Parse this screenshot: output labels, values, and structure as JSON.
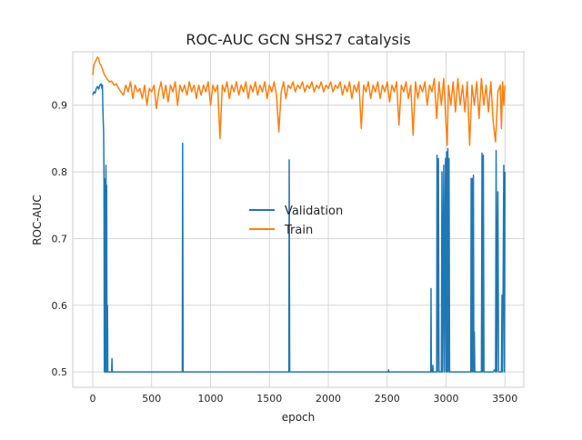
{
  "chart_data": {
    "type": "line",
    "title": "ROC-AUC GCN SHS27 catalysis",
    "xlabel": "epoch",
    "ylabel": "ROC-AUC",
    "xlim": [
      -170,
      3660
    ],
    "ylim": [
      0.477,
      0.98
    ],
    "xticks": [
      0,
      500,
      1000,
      1500,
      2000,
      2500,
      3000,
      3500
    ],
    "yticks": [
      0.5,
      0.6,
      0.7,
      0.8,
      0.9
    ],
    "ytick_labels": [
      "0.5",
      "0.6",
      "0.7",
      "0.8",
      "0.9"
    ],
    "grid": true,
    "legend": "center",
    "series": [
      {
        "name": "Validation",
        "color": "#1f77b4",
        "points": [
          [
            0,
            0.915
          ],
          [
            10,
            0.92
          ],
          [
            20,
            0.918
          ],
          [
            30,
            0.925
          ],
          [
            40,
            0.928
          ],
          [
            50,
            0.924
          ],
          [
            60,
            0.93
          ],
          [
            70,
            0.932
          ],
          [
            78,
            0.925
          ],
          [
            82,
            0.93
          ],
          [
            85,
            0.9
          ],
          [
            88,
            0.88
          ],
          [
            92,
            0.86
          ],
          [
            95,
            0.8
          ],
          [
            98,
            0.5
          ],
          [
            100,
            0.79
          ],
          [
            103,
            0.5
          ],
          [
            106,
            0.78
          ],
          [
            109,
            0.5
          ],
          [
            112,
            0.81
          ],
          [
            115,
            0.5
          ],
          [
            118,
            0.78
          ],
          [
            121,
            0.5
          ],
          [
            125,
            0.6
          ],
          [
            128,
            0.5
          ],
          [
            160,
            0.5
          ],
          [
            163,
            0.52
          ],
          [
            166,
            0.5
          ],
          [
            760,
            0.5
          ],
          [
            763,
            0.843
          ],
          [
            767,
            0.5
          ],
          [
            1665,
            0.5
          ],
          [
            1668,
            0.818
          ],
          [
            1672,
            0.5
          ],
          [
            2510,
            0.5
          ],
          [
            2512,
            0.503
          ],
          [
            2515,
            0.5
          ],
          [
            2870,
            0.5
          ],
          [
            2872,
            0.625
          ],
          [
            2875,
            0.5
          ],
          [
            2885,
            0.5
          ],
          [
            2888,
            0.51
          ],
          [
            2891,
            0.5
          ],
          [
            2920,
            0.5
          ],
          [
            2923,
            0.825
          ],
          [
            2927,
            0.5
          ],
          [
            2935,
            0.82
          ],
          [
            2940,
            0.5
          ],
          [
            2960,
            0.5
          ],
          [
            2965,
            0.8
          ],
          [
            2970,
            0.5
          ],
          [
            2980,
            0.81
          ],
          [
            2985,
            0.5
          ],
          [
            2995,
            0.82
          ],
          [
            3000,
            0.5
          ],
          [
            3005,
            0.83
          ],
          [
            3010,
            0.5
          ],
          [
            3015,
            0.835
          ],
          [
            3020,
            0.5
          ],
          [
            3025,
            0.82
          ],
          [
            3030,
            0.5
          ],
          [
            3210,
            0.5
          ],
          [
            3213,
            0.79
          ],
          [
            3216,
            0.5
          ],
          [
            3222,
            0.79
          ],
          [
            3225,
            0.5
          ],
          [
            3232,
            0.795
          ],
          [
            3236,
            0.5
          ],
          [
            3240,
            0.56
          ],
          [
            3244,
            0.5
          ],
          [
            3300,
            0.5
          ],
          [
            3305,
            0.828
          ],
          [
            3310,
            0.5
          ],
          [
            3316,
            0.825
          ],
          [
            3322,
            0.5
          ],
          [
            3400,
            0.5
          ],
          [
            3410,
            0.503
          ],
          [
            3420,
            0.5
          ],
          [
            3425,
            0.832
          ],
          [
            3430,
            0.5
          ],
          [
            3440,
            0.77
          ],
          [
            3446,
            0.5
          ],
          [
            3470,
            0.5
          ],
          [
            3475,
            0.615
          ],
          [
            3480,
            0.5
          ],
          [
            3490,
            0.81
          ],
          [
            3496,
            0.5
          ],
          [
            3500,
            0.8
          ]
        ]
      },
      {
        "name": "Train",
        "color": "#ff7f0e",
        "points": [
          [
            0,
            0.945
          ],
          [
            10,
            0.96
          ],
          [
            20,
            0.965
          ],
          [
            30,
            0.968
          ],
          [
            40,
            0.972
          ],
          [
            50,
            0.97
          ],
          [
            60,
            0.962
          ],
          [
            70,
            0.96
          ],
          [
            80,
            0.955
          ],
          [
            90,
            0.95
          ],
          [
            100,
            0.945
          ],
          [
            120,
            0.94
          ],
          [
            140,
            0.935
          ],
          [
            160,
            0.936
          ],
          [
            180,
            0.93
          ],
          [
            200,
            0.932
          ],
          [
            220,
            0.925
          ],
          [
            240,
            0.92
          ],
          [
            260,
            0.915
          ],
          [
            280,
            0.93
          ],
          [
            300,
            0.92
          ],
          [
            320,
            0.935
          ],
          [
            340,
            0.91
          ],
          [
            360,
            0.93
          ],
          [
            380,
            0.92
          ],
          [
            400,
            0.925
          ],
          [
            420,
            0.91
          ],
          [
            440,
            0.93
          ],
          [
            460,
            0.9
          ],
          [
            480,
            0.925
          ],
          [
            500,
            0.92
          ],
          [
            520,
            0.93
          ],
          [
            540,
            0.895
          ],
          [
            560,
            0.92
          ],
          [
            580,
            0.935
          ],
          [
            600,
            0.91
          ],
          [
            620,
            0.93
          ],
          [
            640,
            0.905
          ],
          [
            660,
            0.93
          ],
          [
            680,
            0.92
          ],
          [
            700,
            0.935
          ],
          [
            720,
            0.9
          ],
          [
            740,
            0.93
          ],
          [
            760,
            0.92
          ],
          [
            780,
            0.93
          ],
          [
            800,
            0.915
          ],
          [
            820,
            0.935
          ],
          [
            840,
            0.92
          ],
          [
            860,
            0.93
          ],
          [
            880,
            0.91
          ],
          [
            900,
            0.93
          ],
          [
            920,
            0.915
          ],
          [
            940,
            0.93
          ],
          [
            960,
            0.92
          ],
          [
            980,
            0.935
          ],
          [
            1000,
            0.9
          ],
          [
            1020,
            0.93
          ],
          [
            1040,
            0.92
          ],
          [
            1060,
            0.93
          ],
          [
            1080,
            0.85
          ],
          [
            1100,
            0.93
          ],
          [
            1120,
            0.92
          ],
          [
            1140,
            0.935
          ],
          [
            1160,
            0.91
          ],
          [
            1180,
            0.93
          ],
          [
            1200,
            0.92
          ],
          [
            1220,
            0.935
          ],
          [
            1240,
            0.915
          ],
          [
            1260,
            0.93
          ],
          [
            1280,
            0.92
          ],
          [
            1300,
            0.935
          ],
          [
            1320,
            0.91
          ],
          [
            1340,
            0.93
          ],
          [
            1360,
            0.92
          ],
          [
            1380,
            0.935
          ],
          [
            1400,
            0.915
          ],
          [
            1420,
            0.93
          ],
          [
            1440,
            0.92
          ],
          [
            1460,
            0.935
          ],
          [
            1480,
            0.91
          ],
          [
            1500,
            0.93
          ],
          [
            1520,
            0.92
          ],
          [
            1540,
            0.935
          ],
          [
            1560,
            0.915
          ],
          [
            1580,
            0.86
          ],
          [
            1600,
            0.92
          ],
          [
            1620,
            0.935
          ],
          [
            1640,
            0.91
          ],
          [
            1660,
            0.93
          ],
          [
            1680,
            0.925
          ],
          [
            1700,
            0.935
          ],
          [
            1720,
            0.92
          ],
          [
            1740,
            0.93
          ],
          [
            1760,
            0.925
          ],
          [
            1780,
            0.935
          ],
          [
            1800,
            0.92
          ],
          [
            1820,
            0.93
          ],
          [
            1840,
            0.925
          ],
          [
            1860,
            0.935
          ],
          [
            1880,
            0.92
          ],
          [
            1900,
            0.93
          ],
          [
            1920,
            0.925
          ],
          [
            1940,
            0.935
          ],
          [
            1960,
            0.92
          ],
          [
            1980,
            0.93
          ],
          [
            2000,
            0.925
          ],
          [
            2020,
            0.935
          ],
          [
            2040,
            0.92
          ],
          [
            2060,
            0.93
          ],
          [
            2080,
            0.925
          ],
          [
            2100,
            0.935
          ],
          [
            2120,
            0.915
          ],
          [
            2140,
            0.93
          ],
          [
            2160,
            0.92
          ],
          [
            2180,
            0.935
          ],
          [
            2200,
            0.91
          ],
          [
            2220,
            0.93
          ],
          [
            2240,
            0.92
          ],
          [
            2260,
            0.935
          ],
          [
            2280,
            0.865
          ],
          [
            2300,
            0.93
          ],
          [
            2320,
            0.92
          ],
          [
            2340,
            0.935
          ],
          [
            2360,
            0.91
          ],
          [
            2380,
            0.93
          ],
          [
            2400,
            0.92
          ],
          [
            2420,
            0.935
          ],
          [
            2440,
            0.91
          ],
          [
            2460,
            0.93
          ],
          [
            2480,
            0.92
          ],
          [
            2500,
            0.935
          ],
          [
            2520,
            0.905
          ],
          [
            2540,
            0.93
          ],
          [
            2560,
            0.92
          ],
          [
            2580,
            0.935
          ],
          [
            2600,
            0.87
          ],
          [
            2620,
            0.93
          ],
          [
            2640,
            0.92
          ],
          [
            2660,
            0.935
          ],
          [
            2680,
            0.91
          ],
          [
            2700,
            0.93
          ],
          [
            2720,
            0.855
          ],
          [
            2740,
            0.935
          ],
          [
            2760,
            0.91
          ],
          [
            2780,
            0.93
          ],
          [
            2800,
            0.92
          ],
          [
            2820,
            0.935
          ],
          [
            2840,
            0.9
          ],
          [
            2860,
            0.93
          ],
          [
            2880,
            0.92
          ],
          [
            2900,
            0.94
          ],
          [
            2920,
            0.88
          ],
          [
            2940,
            0.935
          ],
          [
            2960,
            0.9
          ],
          [
            2980,
            0.94
          ],
          [
            3000,
            0.87
          ],
          [
            3010,
            0.84
          ],
          [
            3020,
            0.93
          ],
          [
            3040,
            0.9
          ],
          [
            3060,
            0.935
          ],
          [
            3080,
            0.89
          ],
          [
            3100,
            0.94
          ],
          [
            3120,
            0.9
          ],
          [
            3140,
            0.93
          ],
          [
            3160,
            0.89
          ],
          [
            3180,
            0.935
          ],
          [
            3200,
            0.84
          ],
          [
            3220,
            0.93
          ],
          [
            3240,
            0.9
          ],
          [
            3260,
            0.935
          ],
          [
            3280,
            0.88
          ],
          [
            3300,
            0.94
          ],
          [
            3320,
            0.9
          ],
          [
            3340,
            0.93
          ],
          [
            3360,
            0.89
          ],
          [
            3380,
            0.935
          ],
          [
            3400,
            0.875
          ],
          [
            3420,
            0.845
          ],
          [
            3440,
            0.92
          ],
          [
            3460,
            0.93
          ],
          [
            3470,
            0.865
          ],
          [
            3480,
            0.935
          ],
          [
            3490,
            0.9
          ],
          [
            3500,
            0.93
          ]
        ]
      }
    ]
  }
}
